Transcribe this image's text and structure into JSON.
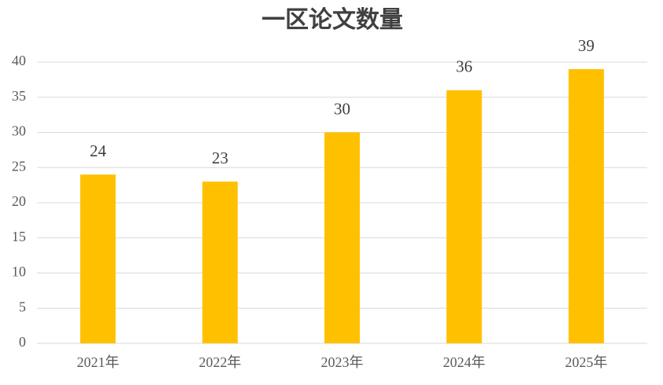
{
  "chart_data": {
    "type": "bar",
    "title": "一区论文数量",
    "categories": [
      "2021年",
      "2022年",
      "2023年",
      "2024年",
      "2025年"
    ],
    "values": [
      24,
      23,
      30,
      36,
      39
    ],
    "color": "#ffc000",
    "ylim": [
      0,
      40
    ],
    "yticks": [
      0,
      5,
      10,
      15,
      20,
      25,
      30,
      35,
      40
    ],
    "grid": true,
    "data_labels": true
  }
}
